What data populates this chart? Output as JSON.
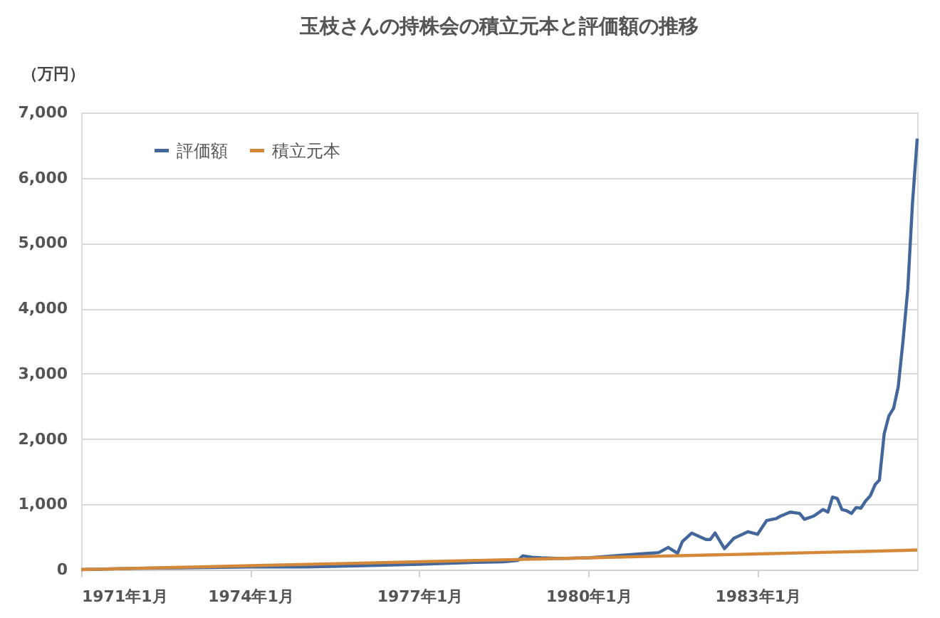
{
  "chart_data": {
    "type": "line",
    "title": "玉枝さんの持株会の積立元本と評価額の推移",
    "ylabel": "（万円）",
    "series": [
      {
        "name": "評価額",
        "color": "#44679b",
        "x": [
          "1971-01",
          "1972-01",
          "1973-01",
          "1974-01",
          "1975-01",
          "1976-01",
          "1977-01",
          "1978-01",
          "1978-07",
          "1978-10",
          "1978-11",
          "1979-01",
          "1979-03",
          "1979-07",
          "1980-01",
          "1980-08",
          "1980-12",
          "1981-04",
          "1981-06",
          "1981-08",
          "1981-09",
          "1981-11",
          "1982-02",
          "1982-03",
          "1982-04",
          "1982-06",
          "1982-08",
          "1982-11",
          "1983-01",
          "1983-03",
          "1983-05",
          "1983-06",
          "1983-08",
          "1983-10",
          "1983-11",
          "1984-01",
          "1984-03",
          "1984-04",
          "1984-05",
          "1984-06",
          "1984-07",
          "1984-08",
          "1984-09",
          "1984-10",
          "1984-11",
          "1984-12",
          "1985-01",
          "1985-02",
          "1985-03",
          "1985-04",
          "1985-05",
          "1985-06",
          "1985-07",
          "1985-08",
          "1985-09",
          "1985-10",
          "1985-11"
        ],
        "values": [
          0,
          20,
          30,
          40,
          40,
          60,
          80,
          110,
          120,
          140,
          210,
          190,
          180,
          170,
          180,
          220,
          240,
          260,
          340,
          250,
          430,
          560,
          460,
          460,
          560,
          320,
          480,
          580,
          540,
          750,
          780,
          820,
          880,
          860,
          770,
          820,
          920,
          880,
          1110,
          1090,
          920,
          900,
          860,
          950,
          940,
          1050,
          1130,
          1300,
          1370,
          2080,
          2350,
          2470,
          2800,
          3500,
          4300,
          5600,
          6600
        ]
      },
      {
        "name": "積立元本",
        "color": "#d4893a",
        "x": [
          "1971-01",
          "1972-01",
          "1973-01",
          "1974-01",
          "1975-01",
          "1976-01",
          "1977-01",
          "1978-01",
          "1979-01",
          "1980-01",
          "1981-01",
          "1982-01",
          "1983-01",
          "1984-01",
          "1985-01",
          "1985-11"
        ],
        "values": [
          0,
          20,
          40,
          60,
          80,
          100,
          120,
          140,
          160,
          180,
          200,
          220,
          240,
          260,
          280,
          300
        ]
      }
    ],
    "xlim": [
      "1971-01",
      "1985-11"
    ],
    "xticks": [
      {
        "value": "1971-01",
        "label": "1971年1月"
      },
      {
        "value": "1974-01",
        "label": "1974年1月"
      },
      {
        "value": "1977-01",
        "label": "1977年1月"
      },
      {
        "value": "1980-01",
        "label": "1980年1月"
      },
      {
        "value": "1983-01",
        "label": "1983年1月"
      }
    ],
    "ylim": [
      0,
      7000
    ],
    "yticks": [
      {
        "value": 0,
        "label": "0"
      },
      {
        "value": 1000,
        "label": "1,000"
      },
      {
        "value": 2000,
        "label": "2,000"
      },
      {
        "value": 3000,
        "label": "3,000"
      },
      {
        "value": 4000,
        "label": "4,000"
      },
      {
        "value": 5000,
        "label": "5,000"
      },
      {
        "value": 6000,
        "label": "6,000"
      },
      {
        "value": 7000,
        "label": "7,000"
      }
    ],
    "grid": "y",
    "legend": "top left",
    "marker": "none",
    "line_style": "solid"
  }
}
